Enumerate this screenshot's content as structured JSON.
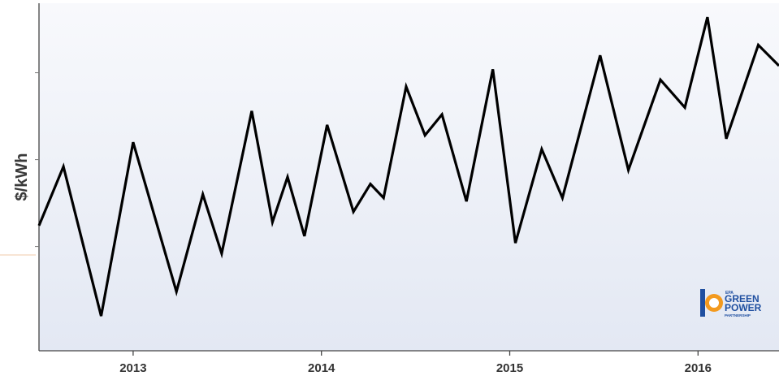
{
  "chart_data": {
    "type": "line",
    "ylabel": "$/kWh",
    "xlabel": "",
    "title": "",
    "x_ticks": [
      "2013",
      "2014",
      "2015",
      "2016"
    ],
    "y_ticks_labeled": false,
    "grid": false,
    "legend": "none",
    "line_color": "#000000",
    "background_color": "#eef1f8",
    "series": [
      {
        "x": [
          2012.5,
          2012.63,
          2012.83,
          2013.0,
          2013.23,
          2013.37,
          2013.47,
          2013.63,
          2013.74,
          2013.82,
          2013.91,
          2014.03,
          2014.17,
          2014.26,
          2014.33,
          2014.45,
          2014.55,
          2014.64,
          2014.77,
          2014.91,
          2015.03,
          2015.17,
          2015.28,
          2015.48,
          2015.63,
          2015.8,
          2015.93,
          2016.05,
          2016.15,
          2016.32,
          2016.43
        ],
        "y": [
          56,
          73,
          30,
          80,
          37,
          65,
          48,
          89,
          57,
          70,
          53,
          85,
          60,
          68,
          64,
          96,
          82,
          88,
          63,
          101,
          51,
          78,
          64,
          105,
          72,
          98,
          90,
          116,
          81,
          108,
          102
        ]
      }
    ],
    "xlim": [
      2012.5,
      2016.43
    ],
    "ylim": [
      20,
      120
    ]
  },
  "logo": {
    "agency": "EPA",
    "line1": "GREEN",
    "line2": "POWER",
    "line3": "PARTNERSHIP"
  }
}
